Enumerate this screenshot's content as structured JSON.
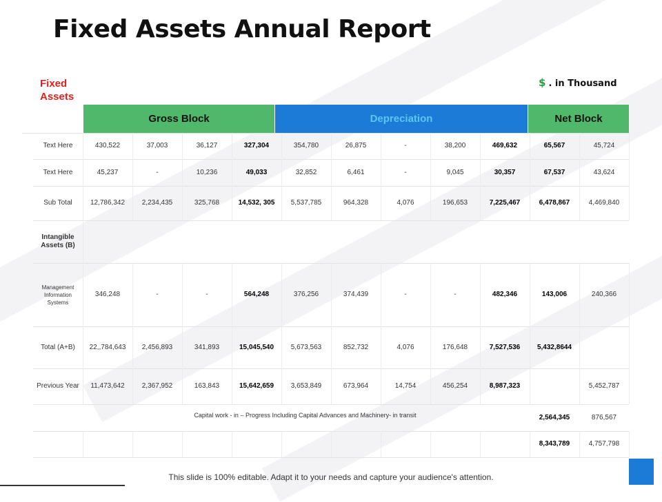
{
  "title": "Fixed Assets Annual Report",
  "section_label": "Fixed Assets",
  "unit": {
    "symbol": "$",
    "text": ". in Thousand"
  },
  "headers": {
    "gross": "Gross Block",
    "depreciation": "Depreciation",
    "net": "Net Block"
  },
  "colors": {
    "green": "#4fb86a",
    "blue": "#1c7bd6",
    "red": "#e02020"
  },
  "rows": [
    {
      "label": "Text Here",
      "cells": [
        "430,522",
        "37,003",
        "36,127",
        "327,304",
        "354,780",
        "26,875",
        "-",
        "38,200",
        "469,632",
        "65,567",
        "45,724"
      ]
    },
    {
      "label": "Text Here",
      "cells": [
        "45,237",
        "-",
        "10,236",
        "49,033",
        "32,852",
        "6,461",
        "-",
        "9,045",
        "30,357",
        "67,537",
        "43,624"
      ]
    },
    {
      "label": "Sub Total",
      "cells": [
        "12,786,342",
        "2,234,435",
        "325,768",
        "14,532, 305",
        "5,537,785",
        "964,328",
        "4,076",
        "196,653",
        "7,225,467",
        "6,478,867",
        "4,469,840"
      ]
    },
    {
      "label": "Intangible Assets (B)",
      "cells": [
        "",
        "",
        "",
        "",
        "",
        "",
        "",
        "",
        "",
        "",
        ""
      ]
    },
    {
      "label": "Management Information Systems",
      "cells": [
        "346,248",
        "-",
        "-",
        "564,248",
        "376,256",
        "374,439",
        "-",
        "-",
        "482,346",
        "143,006",
        "240,366"
      ]
    },
    {
      "label": "Total (A+B)",
      "cells": [
        "22,,784,643",
        "2,456,893",
        "341,893",
        "15,045,540",
        "5,673,563",
        "852,732",
        "4,076",
        "176,648",
        "7,527,536",
        "5,432,8644",
        ""
      ]
    },
    {
      "label": "Previous Year",
      "cells": [
        "11,473,642",
        "2,367,952",
        "163,843",
        "15,642,659",
        "3,653,849",
        "673,964",
        "14,754",
        "456,254",
        "8,987,323",
        "",
        "5,452,787"
      ]
    }
  ],
  "cwip": {
    "text": "Capital work - in – Progress Including Capital Advances and Machinery- in transit",
    "values": [
      "2,564,345",
      "876,567"
    ]
  },
  "final_totals": [
    "8,343,789",
    "4,757,798"
  ],
  "footer": "This slide is 100% editable. Adapt it to your needs and capture your audience's attention."
}
